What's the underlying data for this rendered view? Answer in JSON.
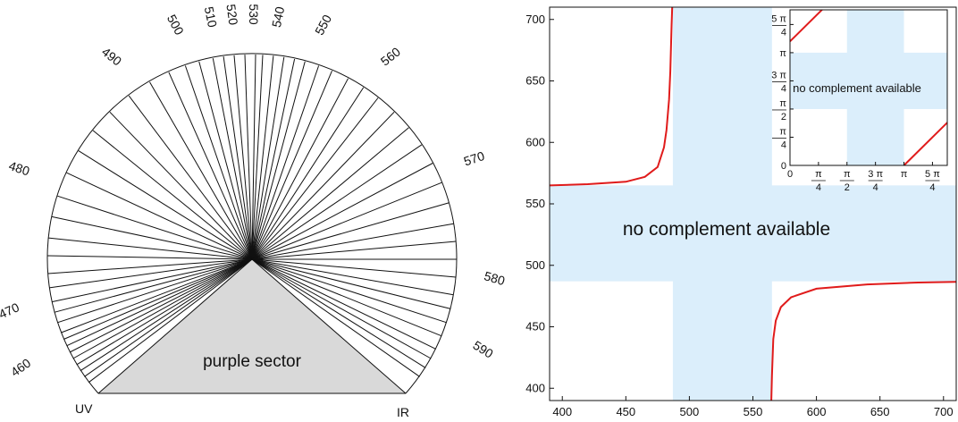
{
  "left_diagram": {
    "wavelength_labels": [
      "460",
      "470",
      "480",
      "490",
      "500",
      "510",
      "520",
      "530",
      "540",
      "550",
      "560",
      "570",
      "580",
      "590"
    ],
    "corner_left": "UV",
    "corner_right": "IR",
    "sector_label": "purple sector",
    "colors": {
      "sector_fill": "#d9d9d9",
      "line": "#111111"
    }
  },
  "chart_data": [
    {
      "type": "line",
      "xlim": [
        390,
        710
      ],
      "ylim": [
        390,
        710
      ],
      "xticks": [
        "400",
        "450",
        "500",
        "550",
        "600",
        "650",
        "700"
      ],
      "yticks": [
        "400",
        "450",
        "500",
        "550",
        "600",
        "650",
        "700"
      ],
      "band_label": "no complement available",
      "bands": {
        "x": [
          487,
          565
        ],
        "y": [
          487,
          565
        ]
      },
      "series": [
        {
          "x": [
            390,
            420,
            450,
            465,
            475,
            480,
            482,
            484,
            485,
            486,
            486.5
          ],
          "y": [
            565,
            566,
            568,
            572,
            580,
            596,
            610,
            635,
            658,
            695,
            710
          ]
        },
        {
          "x": [
            564.5,
            565,
            566,
            568,
            572,
            580,
            600,
            640,
            680,
            710
          ],
          "y": [
            390,
            410,
            440,
            455,
            466,
            474,
            481,
            484.5,
            486,
            486.5
          ]
        }
      ],
      "colors": {
        "band": "#dbeefb",
        "curve": "#e01b1b"
      }
    },
    {
      "type": "line",
      "xticks": [
        "0",
        "π/4",
        "π/2",
        "3π/4",
        "π",
        "5π/4"
      ],
      "yticks": [
        "0",
        "π/4",
        "π/2",
        "3π/4",
        "π",
        "5π/4"
      ],
      "band_label": "no complement available",
      "series": [
        {
          "x": [
            0,
            0.45
          ],
          "y": [
            1.1,
            1.55
          ]
        },
        {
          "x": [
            1.0,
            1.44
          ],
          "y": [
            0.0,
            0.44
          ]
        }
      ],
      "colors": {
        "band": "#dbeefb",
        "curve": "#e01b1b"
      }
    }
  ]
}
